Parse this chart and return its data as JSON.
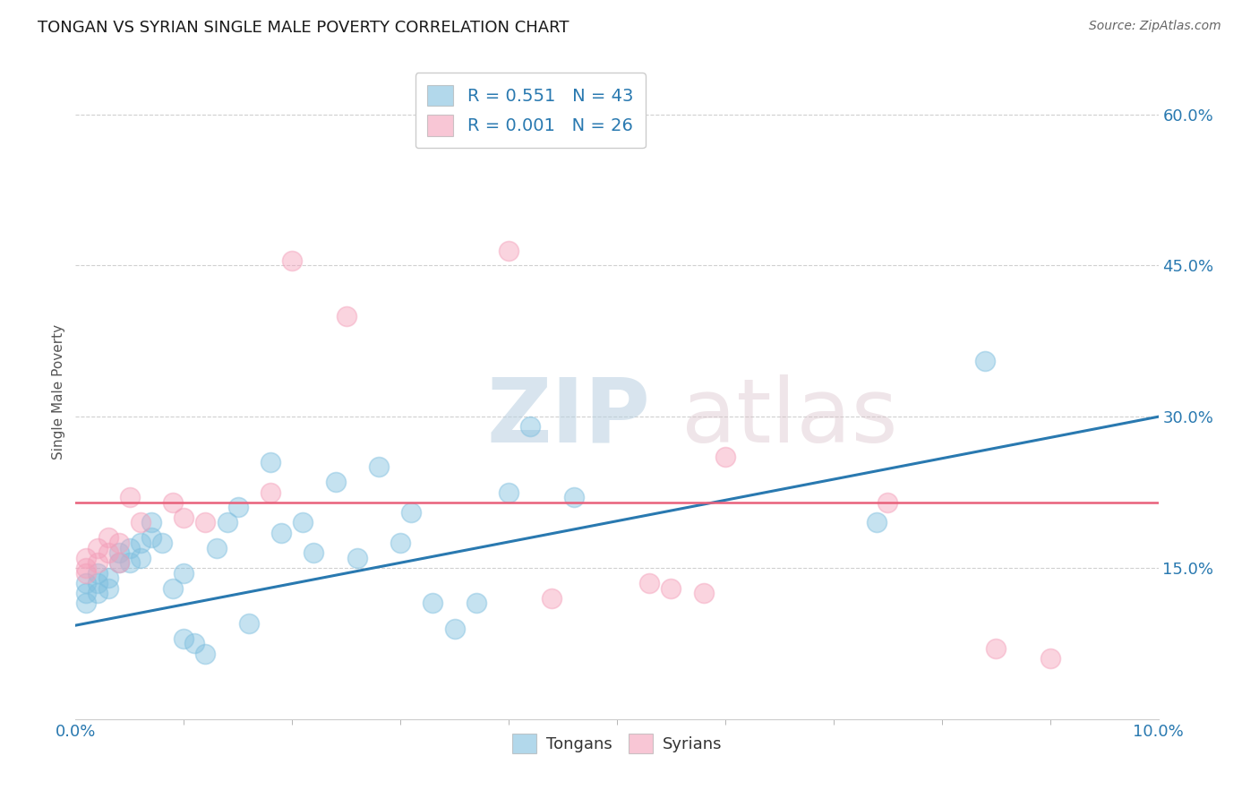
{
  "title": "TONGAN VS SYRIAN SINGLE MALE POVERTY CORRELATION CHART",
  "source": "Source: ZipAtlas.com",
  "ylabel": "Single Male Poverty",
  "xlim": [
    0.0,
    0.1
  ],
  "ylim": [
    0.0,
    0.65
  ],
  "xtick_major": [
    0.0,
    0.1
  ],
  "xtick_major_labels": [
    "0.0%",
    "10.0%"
  ],
  "xtick_minor": [
    0.01,
    0.02,
    0.03,
    0.04,
    0.05,
    0.06,
    0.07,
    0.08,
    0.09
  ],
  "ytick_positions": [
    0.15,
    0.3,
    0.45,
    0.6
  ],
  "ytick_labels": [
    "15.0%",
    "30.0%",
    "45.0%",
    "60.0%"
  ],
  "blue_color": "#7fbfdf",
  "pink_color": "#f4a0ba",
  "line_blue": "#2979b0",
  "line_pink": "#e8607a",
  "R_blue": 0.551,
  "N_blue": 43,
  "R_pink": 0.001,
  "N_pink": 26,
  "accent_blue": "#2979b0",
  "tongan_x": [
    0.001,
    0.001,
    0.001,
    0.002,
    0.002,
    0.002,
    0.003,
    0.003,
    0.004,
    0.004,
    0.005,
    0.005,
    0.006,
    0.006,
    0.007,
    0.007,
    0.008,
    0.009,
    0.01,
    0.01,
    0.011,
    0.012,
    0.013,
    0.014,
    0.015,
    0.016,
    0.018,
    0.019,
    0.021,
    0.022,
    0.024,
    0.026,
    0.028,
    0.03,
    0.031,
    0.033,
    0.035,
    0.037,
    0.04,
    0.042,
    0.046,
    0.074,
    0.084
  ],
  "tongan_y": [
    0.135,
    0.125,
    0.115,
    0.135,
    0.125,
    0.145,
    0.14,
    0.13,
    0.165,
    0.155,
    0.17,
    0.155,
    0.175,
    0.16,
    0.195,
    0.18,
    0.175,
    0.13,
    0.145,
    0.08,
    0.075,
    0.065,
    0.17,
    0.195,
    0.21,
    0.095,
    0.255,
    0.185,
    0.195,
    0.165,
    0.235,
    0.16,
    0.25,
    0.175,
    0.205,
    0.115,
    0.09,
    0.115,
    0.225,
    0.29,
    0.22,
    0.195,
    0.355
  ],
  "syrian_x": [
    0.001,
    0.001,
    0.001,
    0.002,
    0.002,
    0.003,
    0.003,
    0.004,
    0.004,
    0.005,
    0.006,
    0.009,
    0.01,
    0.012,
    0.018,
    0.02,
    0.025,
    0.04,
    0.044,
    0.053,
    0.055,
    0.058,
    0.06,
    0.075,
    0.085,
    0.09
  ],
  "syrian_y": [
    0.16,
    0.15,
    0.145,
    0.17,
    0.155,
    0.165,
    0.18,
    0.155,
    0.175,
    0.22,
    0.195,
    0.215,
    0.2,
    0.195,
    0.225,
    0.455,
    0.4,
    0.465,
    0.12,
    0.135,
    0.13,
    0.125,
    0.26,
    0.215,
    0.07,
    0.06
  ],
  "blue_line_x0": 0.0,
  "blue_line_y0": 0.093,
  "blue_line_x1": 0.1,
  "blue_line_y1": 0.3,
  "pink_line_y": 0.215,
  "background_color": "#ffffff",
  "grid_color": "#d0d0d0"
}
